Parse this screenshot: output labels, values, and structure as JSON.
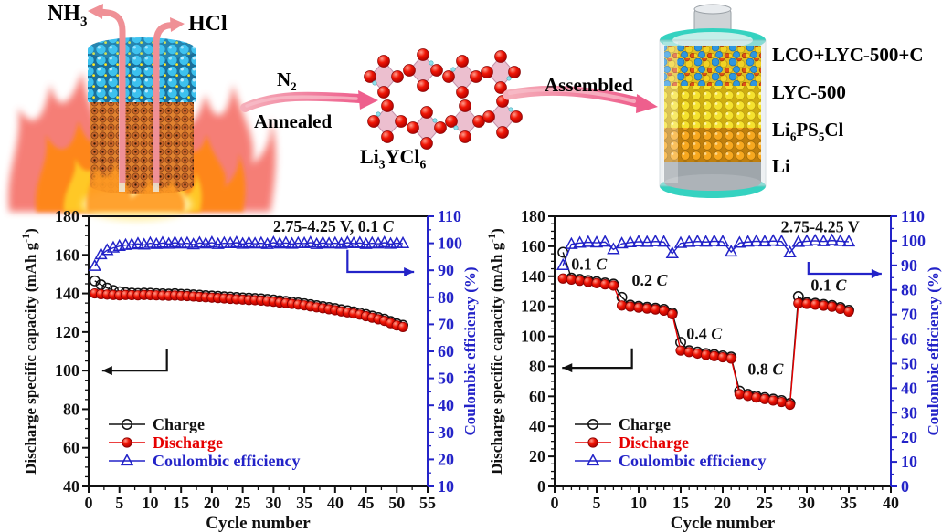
{
  "diagram": {
    "nh3": {
      "base": "NH",
      "sub": "3"
    },
    "hcl": "HCl",
    "n2": {
      "base": "N",
      "sub": "2"
    },
    "annealed": "Annealed",
    "li3ycl6": {
      "p1": "Li",
      "s1": "3",
      "p2": "YCl",
      "s2": "6"
    },
    "assembled": "Assembled",
    "battery_labels": {
      "layer1": "LCO+LYC-500+C",
      "layer2": "LYC-500",
      "layer3": {
        "p1": "Li",
        "s1": "6",
        "p2": "PS",
        "s2": "5",
        "p3": "Cl"
      },
      "layer4": "Li"
    }
  },
  "colors": {
    "red": "#e60000",
    "blue": "#2323c8",
    "black": "#111111",
    "pink_arrow": "#ee5f8d"
  },
  "chart_data": [
    {
      "type": "line",
      "title_parts": [
        {
          "t": "2.75-4.25 V, 0.1 "
        },
        {
          "t": "C",
          "i": true
        }
      ],
      "title_pos": {
        "x": 39.7,
        "y": 174.8
      },
      "xlabel": "Cycle number",
      "ylabel_left_parts": [
        {
          "t": "Discharge specific capacity (mAh g"
        },
        {
          "t": "-1",
          "sup": true
        },
        {
          "t": ")"
        }
      ],
      "ylabel_right": "Coulombic efficiency (%)",
      "xlim": [
        0,
        55
      ],
      "xtick": 5,
      "xminor": 2.5,
      "ylim_left": [
        40,
        180
      ],
      "ytick_left": 20,
      "yminor_left": 5,
      "ylim_right": [
        10,
        110
      ],
      "ytick_right": 10,
      "yminor_right": 5,
      "x_start": 1,
      "series": [
        {
          "name": "Charge",
          "axis": "left",
          "color": "#111111",
          "marker": "circle-open",
          "values": [
            146.5,
            144.5,
            142.8,
            141.6,
            140.9,
            140.4,
            140.2,
            140.0,
            140.2,
            140.1,
            139.9,
            139.8,
            139.7,
            139.9,
            139.6,
            139.5,
            139.3,
            139.1,
            138.9,
            138.7,
            138.5,
            138.3,
            138.1,
            137.9,
            137.7,
            137.6,
            137.4,
            137.2,
            136.9,
            136.6,
            136.2,
            135.9,
            135.5,
            135.1,
            134.7,
            134.2,
            133.7,
            133.2,
            132.7,
            132.2,
            131.6,
            131.1,
            130.5,
            129.9,
            129.1,
            128.3,
            127.5,
            126.7,
            125.5,
            124.3,
            123.5
          ]
        },
        {
          "name": "Discharge",
          "axis": "left",
          "color": "#e60000",
          "marker": "circle-filled",
          "values": [
            140.0,
            139.6,
            139.4,
            139.2,
            139.0,
            139.2,
            139.1,
            139.0,
            139.2,
            139.1,
            139.0,
            138.9,
            138.8,
            138.9,
            138.7,
            138.6,
            138.4,
            138.2,
            138.0,
            137.8,
            137.6,
            137.4,
            137.2,
            137.0,
            136.8,
            136.6,
            136.5,
            136.3,
            136.0,
            135.7,
            135.3,
            135.0,
            134.6,
            134.2,
            133.8,
            133.3,
            132.8,
            132.3,
            131.8,
            131.3,
            130.7,
            130.2,
            129.6,
            129.0,
            128.2,
            127.4,
            126.6,
            125.8,
            124.6,
            123.4,
            122.6
          ]
        },
        {
          "name": "Coulombic efficiency",
          "axis": "right",
          "color": "#2323c8",
          "marker": "triangle-open",
          "values": [
            91.5,
            95.8,
            97.4,
            98.3,
            98.9,
            99.3,
            99.5,
            99.8,
            99.4,
            100.0,
            99.6,
            100.1,
            99.7,
            100.2,
            99.8,
            100.0,
            99.5,
            100.1,
            99.8,
            100.2,
            99.6,
            100.0,
            99.9,
            100.2,
            99.7,
            100.1,
            99.8,
            100.0,
            99.6,
            100.2,
            99.8,
            100.1,
            99.7,
            100.0,
            99.9,
            100.2,
            99.6,
            100.1,
            99.8,
            100.0,
            99.7,
            100.2,
            99.9,
            100.1,
            99.6,
            100.0,
            99.8,
            100.2,
            99.7,
            100.0,
            99.9
          ]
        }
      ],
      "annotations": [],
      "arrows": [
        {
          "color": "#111111",
          "axis": "left",
          "pts": [
            [
              12.7,
              111
            ],
            [
              12.7,
              100
            ],
            [
              2.2,
              100
            ]
          ]
        },
        {
          "color": "#2323c8",
          "axis": "right",
          "pts": [
            [
              42.0,
              97.6
            ],
            [
              42.0,
              89.4
            ],
            [
              52.8,
              89.4
            ]
          ]
        }
      ]
    },
    {
      "type": "line",
      "title_parts": [
        {
          "t": "2.75-4.25 V"
        }
      ],
      "title_pos": {
        "x": 31.6,
        "y": 173.0
      },
      "xlabel": "Cycle number",
      "ylabel_left_parts": [
        {
          "t": "Discharge specific capacity (mAh g"
        },
        {
          "t": "-1",
          "sup": true
        },
        {
          "t": ")"
        }
      ],
      "ylabel_right": "Coulombic efficiency (%)",
      "xlim": [
        0,
        40
      ],
      "xtick": 5,
      "xminor": 1,
      "ylim_left": [
        0,
        180
      ],
      "ytick_left": 20,
      "yminor_left": 5,
      "ylim_right": [
        0,
        110
      ],
      "ytick_right": 10,
      "yminor_right": 5,
      "x_start": 1,
      "series": [
        {
          "name": "Charge",
          "axis": "left",
          "color": "#111111",
          "marker": "circle-open",
          "values": [
            156.0,
            138.8,
            138.0,
            137.2,
            136.4,
            135.6,
            134.8,
            126.0,
            120.8,
            120.0,
            119.4,
            118.8,
            118.0,
            115.6,
            96.0,
            90.5,
            89.6,
            88.6,
            87.8,
            87.0,
            86.2,
            63.5,
            61.4,
            60.2,
            59.2,
            58.2,
            57.2,
            55.4,
            126.5,
            122.5,
            122.0,
            121.3,
            120.6,
            119.2,
            117.4
          ]
        },
        {
          "name": "Discharge",
          "axis": "left",
          "color": "#e60000",
          "marker": "circle-filled",
          "values": [
            138.5,
            137.8,
            137.0,
            136.2,
            135.4,
            134.6,
            133.8,
            120.5,
            119.8,
            119.1,
            118.5,
            117.9,
            117.1,
            114.7,
            90.5,
            89.5,
            88.5,
            87.6,
            86.8,
            86.0,
            85.2,
            61.5,
            60.3,
            59.2,
            58.2,
            57.2,
            56.2,
            54.4,
            122.0,
            121.6,
            121.1,
            120.4,
            119.7,
            118.3,
            116.5
          ]
        },
        {
          "name": "Coulombic efficiency",
          "axis": "right",
          "color": "#2323c8",
          "marker": "triangle-open",
          "values": [
            90.0,
            98.6,
            99.1,
            99.4,
            99.2,
            99.5,
            96.5,
            98.8,
            99.3,
            99.6,
            99.4,
            99.7,
            99.5,
            94.8,
            99.0,
            99.4,
            99.7,
            99.5,
            99.8,
            99.6,
            95.5,
            99.1,
            99.5,
            99.8,
            99.6,
            99.9,
            99.7,
            95.2,
            99.4,
            99.8,
            100.0,
            99.7,
            100.1,
            99.8,
            99.6
          ]
        }
      ],
      "annotations": [
        {
          "x": 4.1,
          "y": 148,
          "parts": [
            {
              "t": "0.1 "
            },
            {
              "t": "C",
              "i": true
            }
          ]
        },
        {
          "x": 11.3,
          "y": 137.5,
          "parts": [
            {
              "t": "0.2 "
            },
            {
              "t": "C",
              "i": true
            }
          ]
        },
        {
          "x": 17.8,
          "y": 102,
          "parts": [
            {
              "t": "0.4 "
            },
            {
              "t": "C",
              "i": true
            }
          ]
        },
        {
          "x": 25.1,
          "y": 78,
          "parts": [
            {
              "t": "0.8 "
            },
            {
              "t": "C",
              "i": true
            }
          ]
        },
        {
          "x": 32.6,
          "y": 134,
          "parts": [
            {
              "t": "0.1 "
            },
            {
              "t": "C",
              "i": true
            }
          ]
        }
      ],
      "arrows": [
        {
          "color": "#111111",
          "axis": "left",
          "pts": [
            [
              9.2,
              92
            ],
            [
              9.2,
              79
            ],
            [
              0.9,
              79
            ]
          ]
        },
        {
          "color": "#2323c8",
          "axis": "right",
          "pts": [
            [
              30.2,
              91.4
            ],
            [
              30.2,
              86.6
            ],
            [
              38.9,
              86.6
            ]
          ]
        }
      ]
    }
  ]
}
